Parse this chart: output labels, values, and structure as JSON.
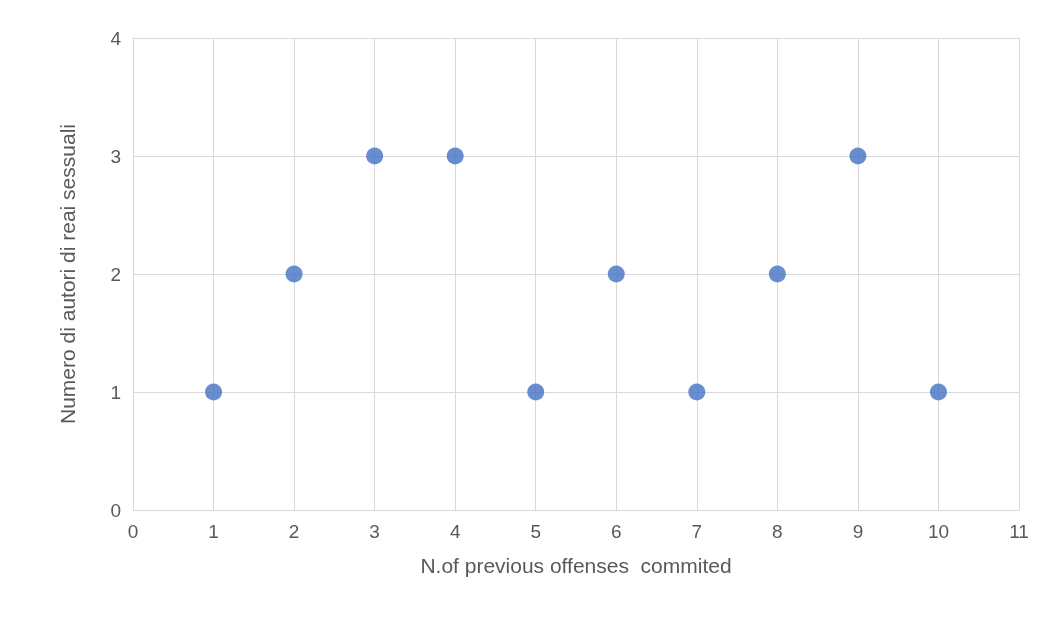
{
  "chart_data": {
    "type": "scatter",
    "xlabel": "N.of previous offenses  commited",
    "ylabel": "Numero di autori di reai sessuali",
    "x": [
      1,
      2,
      3,
      4,
      5,
      6,
      7,
      8,
      9,
      10
    ],
    "series": [
      {
        "color": "#4472c4",
        "values": [
          1,
          2,
          3,
          3,
          1,
          2,
          1,
          2,
          3,
          1
        ]
      }
    ],
    "xlim": [
      0,
      11
    ],
    "xticks": [
      0,
      1,
      2,
      3,
      4,
      5,
      6,
      7,
      8,
      9,
      10,
      11
    ],
    "ylim": [
      0,
      4
    ],
    "yticks": [
      0,
      1,
      2,
      3,
      4
    ],
    "grid": true,
    "marker": "circle"
  }
}
